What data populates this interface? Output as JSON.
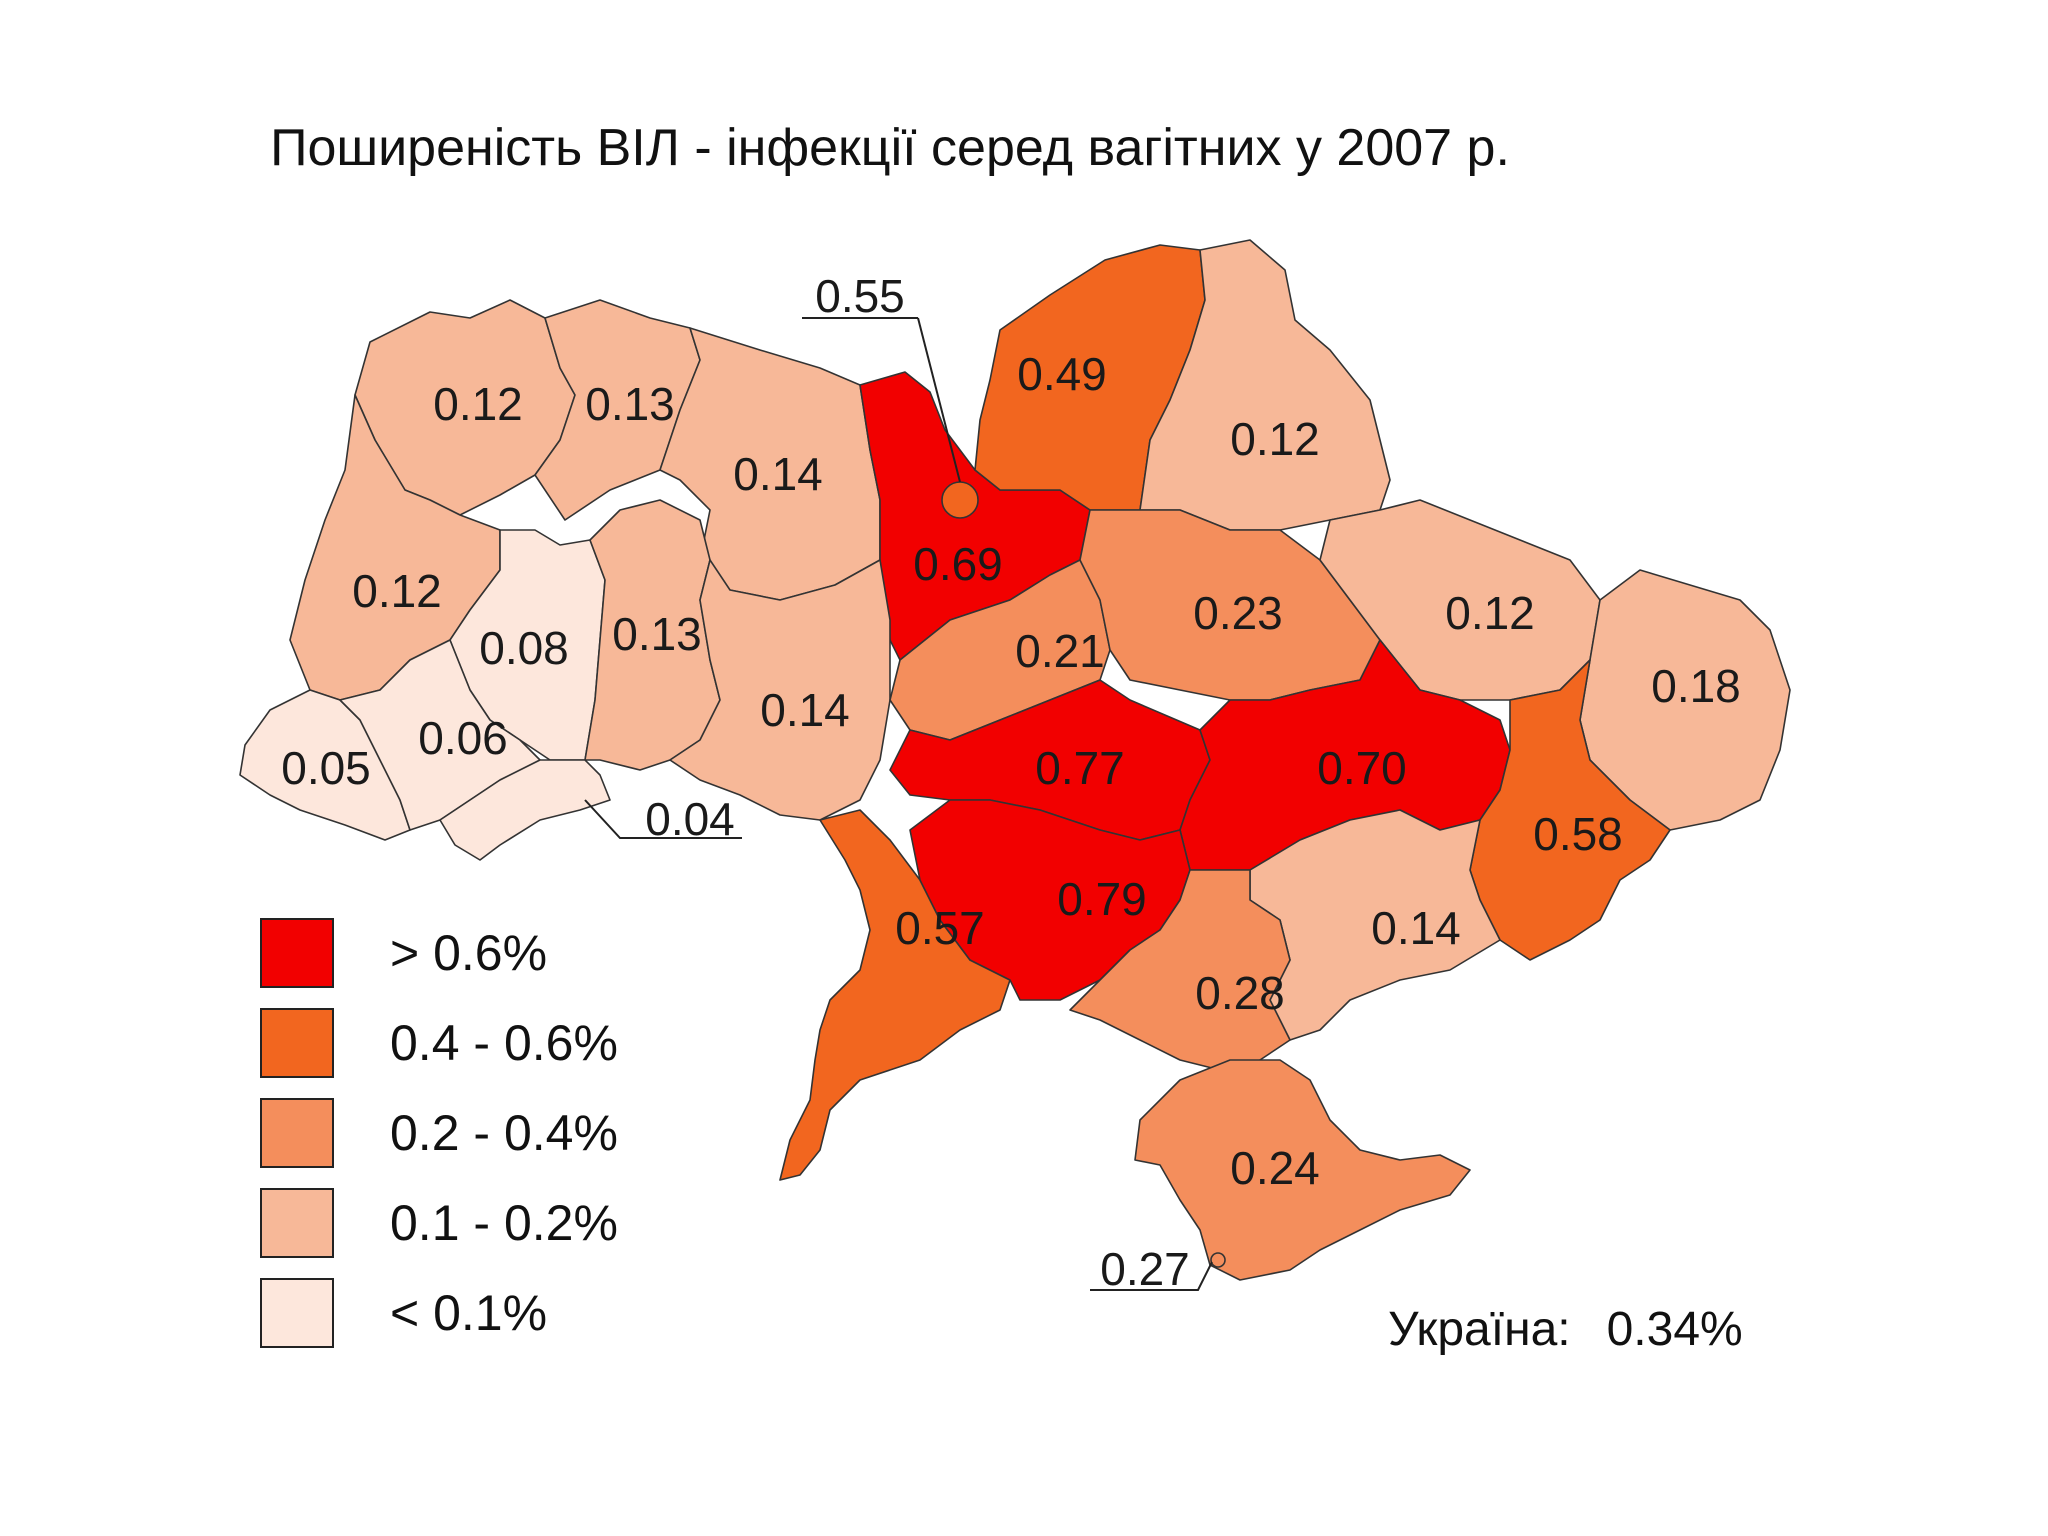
{
  "title": "Поширеність ВІЛ - інфекції серед вагітних у 2007 р.",
  "colors": {
    "gt_0_6": "#f20000",
    "r_0_4_0_6": "#f2661f",
    "r_0_2_0_4": "#f48e5c",
    "r_0_1_0_2": "#f7b898",
    "lt_0_1": "#fde7dc"
  },
  "legend": [
    {
      "label": "> 0.6%",
      "color": "#f20000"
    },
    {
      "label": "0.4 - 0.6%",
      "color": "#f2661f"
    },
    {
      "label": "0.2 - 0.4%",
      "color": "#f48e5c"
    },
    {
      "label": "0.1 - 0.2%",
      "color": "#f7b898"
    },
    {
      "label": "< 0.1%",
      "color": "#fde7dc"
    }
  ],
  "regions": [
    {
      "value": "0.12",
      "color": "#f7b898"
    },
    {
      "value": "0.13",
      "color": "#f7b898"
    },
    {
      "value": "0.14",
      "color": "#f7b898"
    },
    {
      "value": "0.69",
      "color": "#f20000"
    },
    {
      "value": "0.49",
      "color": "#f2661f"
    },
    {
      "value": "0.12",
      "color": "#f7b898"
    },
    {
      "value": "0.12",
      "color": "#f7b898"
    },
    {
      "value": "0.08",
      "color": "#fde7dc"
    },
    {
      "value": "0.13",
      "color": "#f7b898"
    },
    {
      "value": "0.14",
      "color": "#f7b898"
    },
    {
      "value": "0.21",
      "color": "#f48e5c"
    },
    {
      "value": "0.23",
      "color": "#f48e5c"
    },
    {
      "value": "0.12",
      "color": "#f7b898"
    },
    {
      "value": "0.18",
      "color": "#f7b898"
    },
    {
      "value": "0.05",
      "color": "#fde7dc"
    },
    {
      "value": "0.06",
      "color": "#fde7dc"
    },
    {
      "value": "0.04",
      "color": "#fde7dc"
    },
    {
      "value": "0.77",
      "color": "#f20000"
    },
    {
      "value": "0.70",
      "color": "#f20000"
    },
    {
      "value": "0.58",
      "color": "#f2661f"
    },
    {
      "value": "0.57",
      "color": "#f2661f"
    },
    {
      "value": "0.79",
      "color": "#f20000"
    },
    {
      "value": "0.14",
      "color": "#f7b898"
    },
    {
      "value": "0.28",
      "color": "#f48e5c"
    },
    {
      "value": "0.24",
      "color": "#f48e5c"
    },
    {
      "value": "0.55",
      "color": "#f2661f"
    },
    {
      "value": "0.27",
      "color": "#f48e5c"
    }
  ],
  "total": {
    "label": "Україна:",
    "value": "0.34%"
  }
}
